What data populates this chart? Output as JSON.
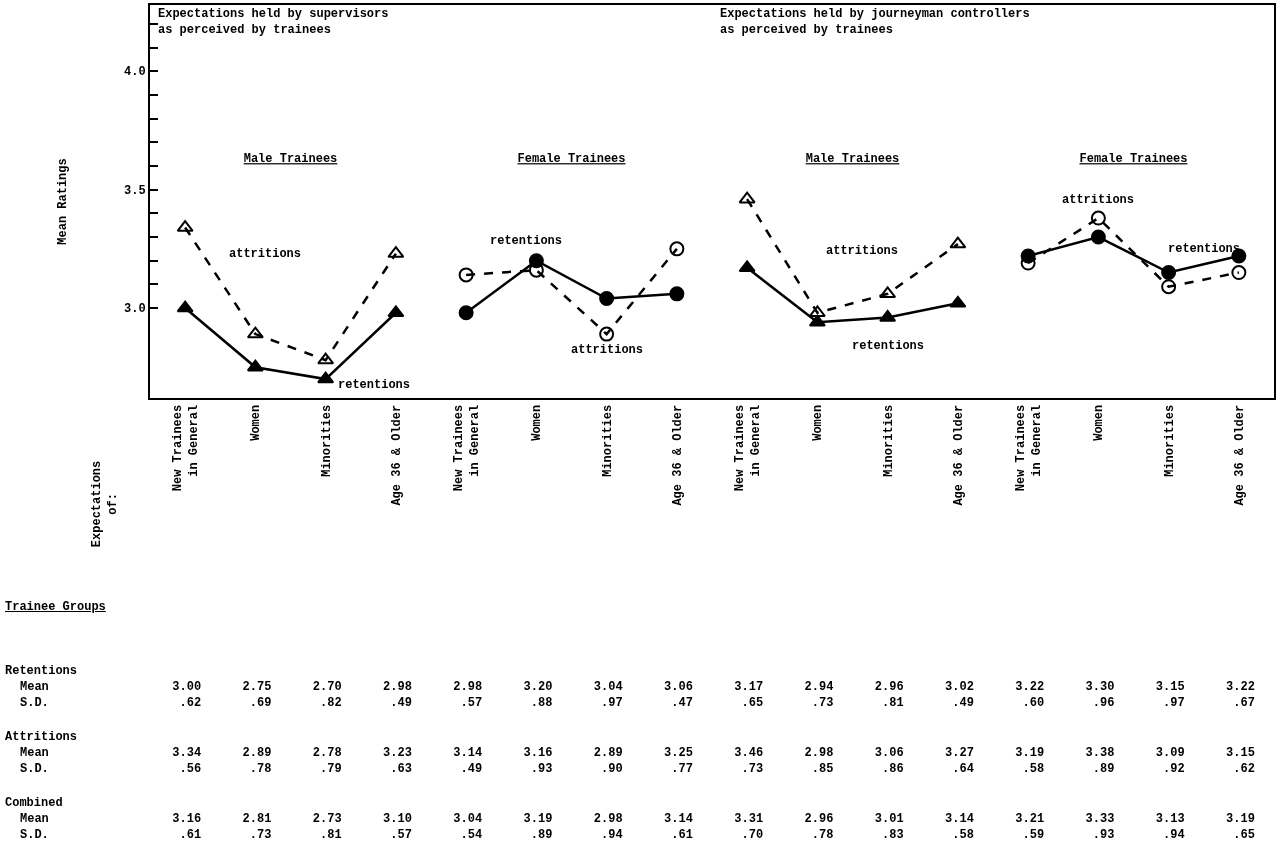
{
  "chart_data": [
    {
      "type": "line",
      "title": "Male Trainees",
      "subtitle": "Expectations held by supervisors\nas perceived by trainees",
      "ylabel": "Mean Ratings",
      "annotations": [
        "Expectations\nof:"
      ],
      "categories": [
        "New Trainees\nin General",
        "Women",
        "Minorities",
        "Age 36 & Older"
      ],
      "series": [
        {
          "name": "retentions",
          "color": "#000000",
          "values": [
            3.0,
            2.75,
            2.7,
            2.98
          ]
        },
        {
          "name": "attritions",
          "color": "#000000",
          "line_style": "dashed",
          "values": [
            3.34,
            2.89,
            2.78,
            3.23
          ]
        }
      ],
      "ylim": [
        2.62,
        4.28
      ],
      "yticks": [
        {
          "value": 3,
          "label": "3.0"
        },
        {
          "value": 3.1,
          "label": null
        },
        {
          "value": 3.2,
          "label": null
        },
        {
          "value": 3.3,
          "label": null
        },
        {
          "value": 3.4,
          "label": null
        },
        {
          "value": 3.5,
          "label": "3.5"
        },
        {
          "value": 3.6,
          "label": null
        },
        {
          "value": 3.7,
          "label": null
        },
        {
          "value": 3.8,
          "label": null
        },
        {
          "value": 3.9,
          "label": null
        },
        {
          "value": 4,
          "label": "4.0"
        },
        {
          "value": 4.1,
          "label": null
        },
        {
          "value": 4.2,
          "label": null
        }
      ],
      "marker": "triangle",
      "line_style": "solid"
    },
    {
      "type": "line",
      "title": "Female Trainees",
      "categories": [
        "New Trainees\nin General",
        "Women",
        "Minorities",
        "Age 36 & Older"
      ],
      "series": [
        {
          "name": "retentions",
          "color": "#000000",
          "values": [
            2.98,
            3.2,
            3.04,
            3.06
          ]
        },
        {
          "name": "attritions",
          "color": "#000000",
          "line_style": "dashed",
          "values": [
            3.14,
            3.16,
            2.89,
            3.25
          ]
        }
      ],
      "ylim": [
        2.62,
        4.28
      ],
      "tick_labels": "x",
      "marker": "circle",
      "line_style": "solid"
    },
    {
      "type": "line",
      "title": "Male Trainees",
      "subtitle": "Expectations held by journeyman controllers\nas perceived by trainees",
      "categories": [
        "New Trainees\nin General",
        "Women",
        "Minorities",
        "Age 36 & Older"
      ],
      "series": [
        {
          "name": "retentions",
          "color": "#000000",
          "values": [
            3.17,
            2.94,
            2.96,
            3.02
          ]
        },
        {
          "name": "attritions",
          "color": "#000000",
          "line_style": "dashed",
          "values": [
            3.46,
            2.98,
            3.06,
            3.27
          ]
        }
      ],
      "ylim": [
        2.62,
        4.28
      ],
      "tick_labels": "x",
      "marker": "triangle",
      "line_style": "solid"
    },
    {
      "type": "line",
      "title": "Female Trainees",
      "categories": [
        "New Trainees\nin General",
        "Women",
        "Minorities",
        "Age 36 & Older"
      ],
      "series": [
        {
          "name": "retentions",
          "color": "#000000",
          "values": [
            3.22,
            3.3,
            3.15,
            3.22
          ]
        },
        {
          "name": "attritions",
          "color": "#000000",
          "line_style": "dashed",
          "values": [
            3.19,
            3.38,
            3.09,
            3.15
          ]
        }
      ],
      "ylim": [
        2.62,
        4.28
      ],
      "tick_labels": "x",
      "marker": "circle",
      "line_style": "solid"
    },
    {
      "type": "other",
      "annotations": [
        "Trainee Groups",
        "Retentions",
        "Mean 3.00 2.75 2.70 2.98 2.98 3.20 3.04 3.06 3.17 2.94 2.96 3.02 3.22 3.30 3.15 3.22",
        "S.D. .62 .69 .82 .49 .57 .88 .97 .47 .65 .73 .81 .49 .60 .96 .97 .67",
        "Attritions",
        "Mean 3.34 2.89 2.78 3.23 3.14 3.16 2.89 3.25 3.46 2.98 3.06 3.27 3.19 3.38 3.09 3.15",
        "S.D. .56 .78 .79 .63 .49 .93 .90 .77 .73 .85 .86 .64 .58 .89 .92 .62",
        "Combined",
        "Mean 3.16 2.81 2.73 3.10 3.04 3.19 2.98 3.14 3.31 2.96 3.01 3.14 3.21 3.33 3.13 3.19",
        "S.D. .61 .73 .81 .57 .54 .89 .94 .61 .70 .78 .83 .58 .59 .93 .94 .65"
      ]
    }
  ]
}
